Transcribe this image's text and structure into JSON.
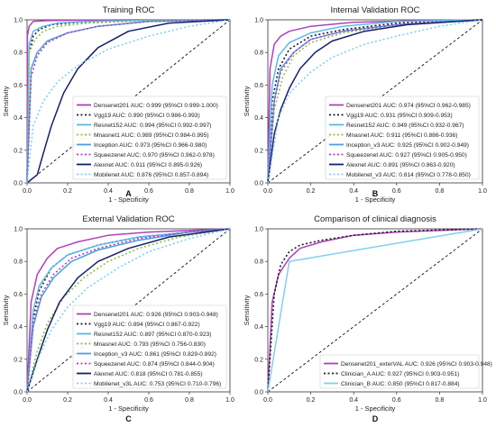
{
  "figure": {
    "panels": [
      "A",
      "B",
      "C",
      "D"
    ]
  },
  "chart_data": [
    {
      "type": "line",
      "panel_label": "A",
      "title": "Training ROC",
      "xlabel": "1 - Specificity",
      "ylabel": "Sensitivity",
      "xlim": [
        0,
        1
      ],
      "ylim": [
        0,
        1
      ],
      "xticks": [
        "0.0",
        "0.2",
        "0.4",
        "0.6",
        "0.8",
        "1.0"
      ],
      "yticks": [
        "0.0",
        "0.2",
        "0.4",
        "0.6",
        "0.8",
        "1.0"
      ],
      "legend_position": "lower-right",
      "series": [
        {
          "name": "Densenet201 AUC: 0.999 (95%CI 0.999-1.000)",
          "color": "#b040b8",
          "style": "solid",
          "x": [
            0,
            0.002,
            0.01,
            0.03,
            0.1,
            0.3,
            0.6,
            1.0
          ],
          "y": [
            0,
            0.9,
            0.96,
            0.99,
            0.995,
            0.999,
            1.0,
            1.0
          ]
        },
        {
          "name": "Vgg19 AUC: 0.990 (95%CI 0.986-0.993)",
          "color": "#1a1a2e",
          "style": "dotted",
          "x": [
            0,
            0.01,
            0.03,
            0.06,
            0.12,
            0.25,
            0.5,
            1.0
          ],
          "y": [
            0,
            0.8,
            0.9,
            0.94,
            0.97,
            0.985,
            0.995,
            1.0
          ]
        },
        {
          "name": "Resnet152 AUC: 0.994 (95%CI 0.992-0.997)",
          "color": "#5ab8ea",
          "style": "solid",
          "x": [
            0,
            0.01,
            0.03,
            0.08,
            0.15,
            0.3,
            0.6,
            1.0
          ],
          "y": [
            0,
            0.85,
            0.93,
            0.96,
            0.98,
            0.99,
            0.998,
            1.0
          ]
        },
        {
          "name": "Mnasnet1 AUC: 0.989 (95%CI 0.984-0.995)",
          "color": "#8fbf3f",
          "style": "dotted",
          "x": [
            0,
            0.01,
            0.04,
            0.08,
            0.15,
            0.3,
            0.6,
            1.0
          ],
          "y": [
            0,
            0.8,
            0.88,
            0.93,
            0.96,
            0.98,
            0.995,
            1.0
          ]
        },
        {
          "name": "Inception AUC: 0.973 (95%CI 0.966-0.980)",
          "color": "#4a9fe0",
          "style": "solid",
          "x": [
            0,
            0.02,
            0.05,
            0.1,
            0.2,
            0.35,
            0.6,
            1.0
          ],
          "y": [
            0,
            0.7,
            0.8,
            0.87,
            0.92,
            0.96,
            0.99,
            1.0
          ]
        },
        {
          "name": "Squeezenet AUC: 0.970 (95%CI 0.962-0.978)",
          "color": "#b040b8",
          "style": "dotted",
          "x": [
            0,
            0.02,
            0.05,
            0.1,
            0.2,
            0.35,
            0.6,
            1.0
          ],
          "y": [
            0,
            0.65,
            0.78,
            0.86,
            0.92,
            0.96,
            0.99,
            1.0
          ]
        },
        {
          "name": "Alexnet AUC: 0.911 (95%CI 0.895-0.926)",
          "color": "#14206b",
          "style": "solid",
          "x": [
            0,
            0.05,
            0.08,
            0.12,
            0.18,
            0.25,
            0.35,
            0.5,
            0.7,
            1.0
          ],
          "y": [
            0,
            0.05,
            0.18,
            0.35,
            0.55,
            0.7,
            0.83,
            0.93,
            0.98,
            1.0
          ]
        },
        {
          "name": "Mobilenet AUC: 0.876 (95%CI 0.857-0.894)",
          "color": "#7fd0ee",
          "style": "dotted",
          "x": [
            0,
            0.03,
            0.08,
            0.15,
            0.25,
            0.4,
            0.6,
            0.8,
            1.0
          ],
          "y": [
            0,
            0.35,
            0.5,
            0.62,
            0.72,
            0.82,
            0.9,
            0.96,
            1.0
          ]
        }
      ]
    },
    {
      "type": "line",
      "panel_label": "B",
      "title": "Internal Validation ROC",
      "xlabel": "1 - Specificity",
      "ylabel": "Sensitivity",
      "xlim": [
        0,
        1
      ],
      "ylim": [
        0,
        1
      ],
      "xticks": [
        "0.0",
        "0.2",
        "0.4",
        "0.6",
        "0.8",
        "1.0"
      ],
      "yticks": [
        "0.0",
        "0.2",
        "0.4",
        "0.6",
        "0.8",
        "1.0"
      ],
      "legend_position": "lower-right",
      "series": [
        {
          "name": "Densenet201 AUC: 0.974 (95%CI 0.962-0.985)",
          "color": "#b040b8",
          "style": "solid",
          "x": [
            0,
            0.01,
            0.03,
            0.06,
            0.1,
            0.2,
            0.4,
            0.7,
            1.0
          ],
          "y": [
            0,
            0.7,
            0.85,
            0.9,
            0.93,
            0.96,
            0.985,
            0.995,
            1.0
          ]
        },
        {
          "name": "Vgg19 AUC: 0.931 (95%CI 0.909-0.953)",
          "color": "#1a1a2e",
          "style": "dotted",
          "x": [
            0,
            0.02,
            0.05,
            0.1,
            0.2,
            0.35,
            0.6,
            1.0
          ],
          "y": [
            0,
            0.5,
            0.7,
            0.82,
            0.9,
            0.94,
            0.98,
            1.0
          ]
        },
        {
          "name": "Resnet152 AUC: 0.949 (95%CI 0.932-0.967)",
          "color": "#5ab8ea",
          "style": "solid",
          "x": [
            0,
            0.02,
            0.05,
            0.1,
            0.2,
            0.35,
            0.6,
            1.0
          ],
          "y": [
            0,
            0.6,
            0.78,
            0.86,
            0.92,
            0.96,
            0.99,
            1.0
          ]
        },
        {
          "name": "Mnasnet AUC: 0.911 (95%CI 0.886-0.936)",
          "color": "#8fbf3f",
          "style": "dotted",
          "x": [
            0,
            0.03,
            0.07,
            0.12,
            0.2,
            0.35,
            0.6,
            1.0
          ],
          "y": [
            0,
            0.45,
            0.65,
            0.78,
            0.86,
            0.92,
            0.97,
            1.0
          ]
        },
        {
          "name": "Inception_v3 AUC: 0.925 (95%CI 0.902-0.949)",
          "color": "#4a9fe0",
          "style": "solid",
          "x": [
            0,
            0.03,
            0.06,
            0.12,
            0.2,
            0.35,
            0.6,
            1.0
          ],
          "y": [
            0,
            0.5,
            0.7,
            0.8,
            0.88,
            0.93,
            0.97,
            1.0
          ]
        },
        {
          "name": "Squeezenet AUC: 0.927 (95%CI 0.905-0.950)",
          "color": "#b040b8",
          "style": "dotted",
          "x": [
            0,
            0.03,
            0.06,
            0.12,
            0.2,
            0.35,
            0.6,
            1.0
          ],
          "y": [
            0,
            0.5,
            0.68,
            0.8,
            0.88,
            0.93,
            0.97,
            1.0
          ]
        },
        {
          "name": "Alexnet AUC: 0.891 (95%CI 0.863-0.920)",
          "color": "#14206b",
          "style": "solid",
          "x": [
            0,
            0.03,
            0.06,
            0.1,
            0.15,
            0.22,
            0.3,
            0.45,
            0.65,
            1.0
          ],
          "y": [
            0,
            0.3,
            0.45,
            0.58,
            0.7,
            0.8,
            0.87,
            0.93,
            0.97,
            1.0
          ]
        },
        {
          "name": "Mobilenet_v3 AUC: 0.814 (95%CI 0.778-0.850)",
          "color": "#7fd0ee",
          "style": "dotted",
          "x": [
            0,
            0.05,
            0.1,
            0.2,
            0.3,
            0.45,
            0.6,
            0.8,
            1.0
          ],
          "y": [
            0,
            0.4,
            0.55,
            0.68,
            0.77,
            0.85,
            0.9,
            0.96,
            1.0
          ]
        }
      ]
    },
    {
      "type": "line",
      "panel_label": "C",
      "title": "External Validation ROC",
      "xlabel": "1 - Specificity",
      "ylabel": "Sensitivity",
      "xlim": [
        0,
        1
      ],
      "ylim": [
        0,
        1
      ],
      "xticks": [
        "0.0",
        "0.2",
        "0.4",
        "0.6",
        "0.8",
        "1.0"
      ],
      "yticks": [
        "0.0",
        "0.2",
        "0.4",
        "0.6",
        "0.8",
        "1.0"
      ],
      "legend_position": "lower-right",
      "series": [
        {
          "name": "Densenet201 AUC: 0.926 (95%CI 0.903-0.948)",
          "color": "#b040b8",
          "style": "solid",
          "x": [
            0,
            0.02,
            0.05,
            0.1,
            0.15,
            0.25,
            0.4,
            0.6,
            1.0
          ],
          "y": [
            0,
            0.55,
            0.72,
            0.82,
            0.88,
            0.92,
            0.96,
            0.98,
            1.0
          ]
        },
        {
          "name": "Vgg19 AUC: 0.894 (95%CI 0.867-0.922)",
          "color": "#1a1a2e",
          "style": "dotted",
          "x": [
            0,
            0.03,
            0.06,
            0.12,
            0.2,
            0.35,
            0.55,
            0.8,
            1.0
          ],
          "y": [
            0,
            0.45,
            0.62,
            0.76,
            0.84,
            0.9,
            0.95,
            0.98,
            1.0
          ]
        },
        {
          "name": "Resnet152 AUC: 0.897 (95%CI 0.870-0.923)",
          "color": "#5ab8ea",
          "style": "solid",
          "x": [
            0,
            0.03,
            0.06,
            0.12,
            0.2,
            0.35,
            0.55,
            0.8,
            1.0
          ],
          "y": [
            0,
            0.5,
            0.65,
            0.76,
            0.84,
            0.9,
            0.95,
            0.98,
            1.0
          ]
        },
        {
          "name": "Mnasnet AUC: 0.793 (95%CI 0.756-0.830)",
          "color": "#8fbf3f",
          "style": "dotted",
          "x": [
            0,
            0.05,
            0.1,
            0.18,
            0.28,
            0.4,
            0.55,
            0.75,
            1.0
          ],
          "y": [
            0,
            0.25,
            0.42,
            0.58,
            0.7,
            0.8,
            0.88,
            0.95,
            1.0
          ]
        },
        {
          "name": "Inception_v3 AUC: 0.861 (95%CI 0.829-0.892)",
          "color": "#4a9fe0",
          "style": "solid",
          "x": [
            0,
            0.03,
            0.07,
            0.13,
            0.22,
            0.35,
            0.55,
            0.8,
            1.0
          ],
          "y": [
            0,
            0.4,
            0.58,
            0.7,
            0.8,
            0.87,
            0.93,
            0.98,
            1.0
          ]
        },
        {
          "name": "Squeezenet AUC: 0.874 (95%CI 0.844-0.904)",
          "color": "#b040b8",
          "style": "dotted",
          "x": [
            0,
            0.03,
            0.07,
            0.13,
            0.22,
            0.35,
            0.55,
            0.8,
            1.0
          ],
          "y": [
            0,
            0.42,
            0.6,
            0.72,
            0.82,
            0.88,
            0.94,
            0.98,
            1.0
          ]
        },
        {
          "name": "Alexnet AUC: 0.818 (95%CI 0.781-0.855)",
          "color": "#14206b",
          "style": "solid",
          "x": [
            0,
            0.05,
            0.1,
            0.16,
            0.25,
            0.35,
            0.5,
            0.7,
            1.0
          ],
          "y": [
            0,
            0.2,
            0.38,
            0.55,
            0.7,
            0.8,
            0.88,
            0.95,
            1.0
          ]
        },
        {
          "name": "Mobilenet_v3L AUC: 0.753 (95%CI 0.710-0.796)",
          "color": "#7fd0ee",
          "style": "dotted",
          "x": [
            0,
            0.06,
            0.12,
            0.2,
            0.3,
            0.45,
            0.6,
            0.8,
            1.0
          ],
          "y": [
            0,
            0.22,
            0.38,
            0.52,
            0.64,
            0.76,
            0.86,
            0.94,
            1.0
          ]
        }
      ]
    },
    {
      "type": "line",
      "panel_label": "D",
      "title": "Comparison of clinical diagnosis",
      "xlabel": "1 - Specificity",
      "ylabel": "Sensitivity",
      "xlim": [
        0,
        1
      ],
      "ylim": [
        0,
        1
      ],
      "xticks": [
        "0.0",
        "0.2",
        "0.4",
        "0.6",
        "0.8",
        "1.0"
      ],
      "yticks": [
        "0.0",
        "0.2",
        "0.4",
        "0.6",
        "0.8",
        "1.0"
      ],
      "legend_position": "lower-right",
      "series": [
        {
          "name": "Densenet201_exterVAL AUC: 0.926 (95%CI 0.903-0.948)",
          "color": "#b040b8",
          "style": "solid",
          "x": [
            0,
            0.02,
            0.05,
            0.1,
            0.15,
            0.25,
            0.4,
            0.6,
            1.0
          ],
          "y": [
            0,
            0.55,
            0.72,
            0.82,
            0.88,
            0.92,
            0.96,
            0.98,
            1.0
          ]
        },
        {
          "name": "Clinician_A AUC: 0.927 (95%CI 0.903-0.951)",
          "color": "#1a1a2e",
          "style": "dotted",
          "x": [
            0,
            0.03,
            0.06,
            0.1,
            0.15,
            0.25,
            0.4,
            0.6,
            1.0
          ],
          "y": [
            0,
            0.6,
            0.78,
            0.86,
            0.9,
            0.93,
            0.96,
            0.985,
            1.0
          ]
        },
        {
          "name": "Clinician_B AUC: 0.850 (95%CI 0.817-0.884)",
          "color": "#7fd0ee",
          "style": "solid",
          "x": [
            0,
            0.1,
            1.0
          ],
          "y": [
            0,
            0.8,
            1.0
          ]
        }
      ]
    }
  ]
}
